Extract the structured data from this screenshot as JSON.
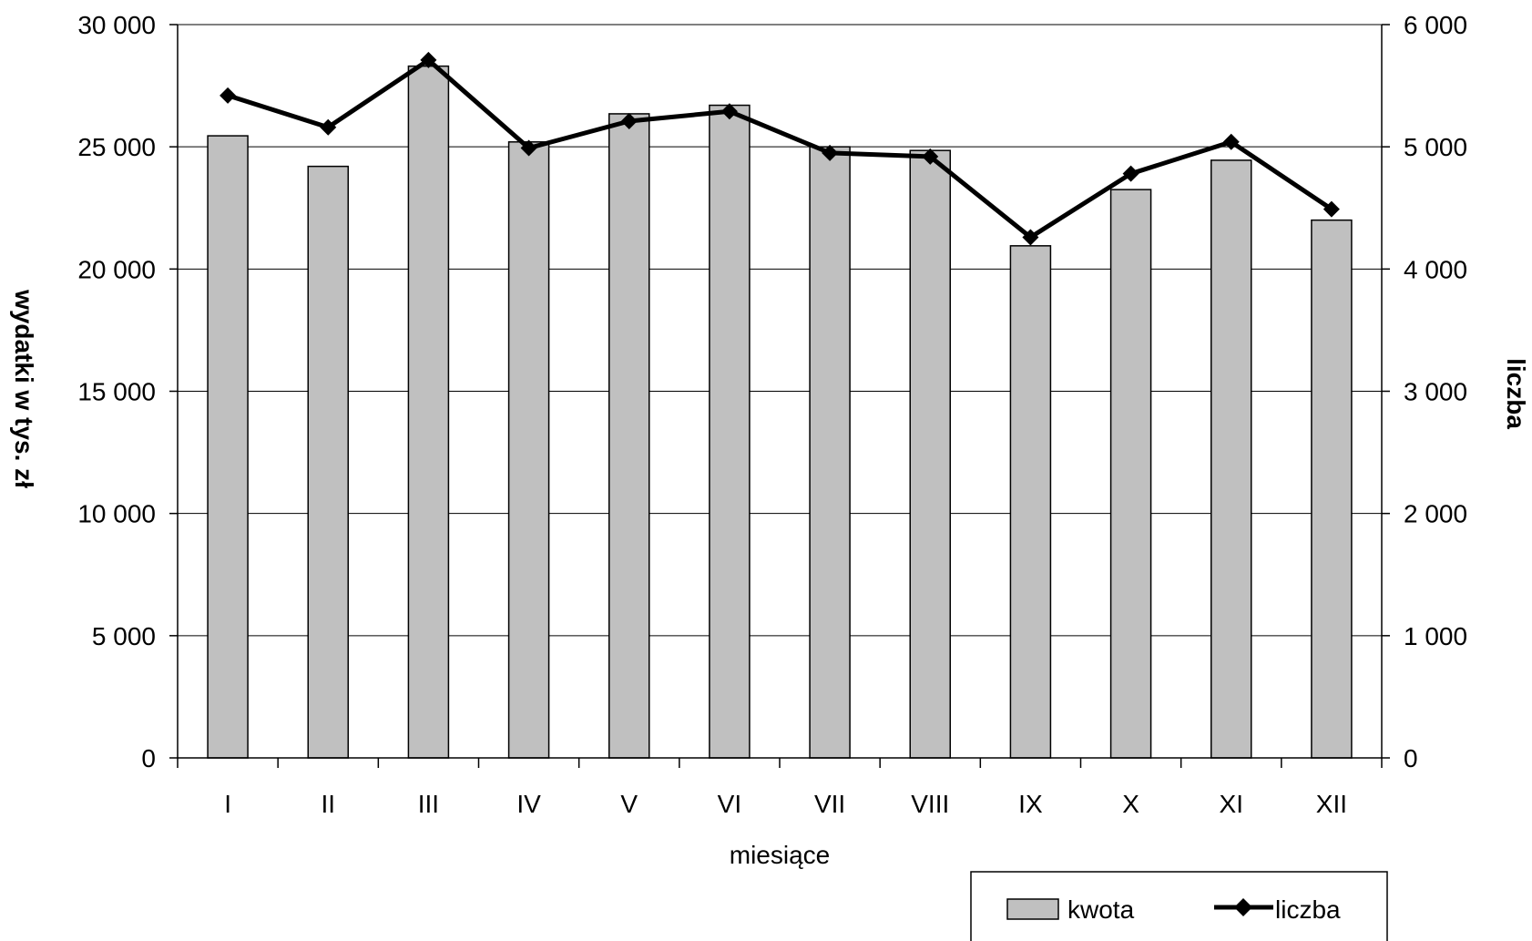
{
  "chart_data": {
    "type": "bar",
    "categories": [
      "I",
      "II",
      "III",
      "IV",
      "V",
      "VI",
      "VII",
      "VIII",
      "IX",
      "X",
      "XI",
      "XII"
    ],
    "series": [
      {
        "name": "kwota",
        "type": "bar",
        "axis": "left",
        "color": "#c0c0c0",
        "values": [
          25450,
          24200,
          28300,
          25200,
          26350,
          26700,
          25000,
          24850,
          20950,
          23250,
          24450,
          22000
        ]
      },
      {
        "name": "liczba",
        "type": "line",
        "axis": "right",
        "color": "#000000",
        "marker": "diamond",
        "values": [
          5420,
          5160,
          5710,
          4990,
          5210,
          5290,
          4950,
          4920,
          4260,
          4780,
          5040,
          4490
        ]
      }
    ],
    "xlabel": "miesiące",
    "ylabel": "wydatki w tys. zł",
    "y2label": "liczba",
    "ylim": [
      0,
      30000
    ],
    "y2lim": [
      0,
      6000
    ],
    "yticks": [
      "0",
      "5 000",
      "10 000",
      "15 000",
      "20 000",
      "25 000",
      "30 000"
    ],
    "y2ticks": [
      "0",
      "1 000",
      "2 000",
      "3 000",
      "4 000",
      "5 000",
      "6 000"
    ],
    "grid": true,
    "legend_position": "bottom-right"
  }
}
